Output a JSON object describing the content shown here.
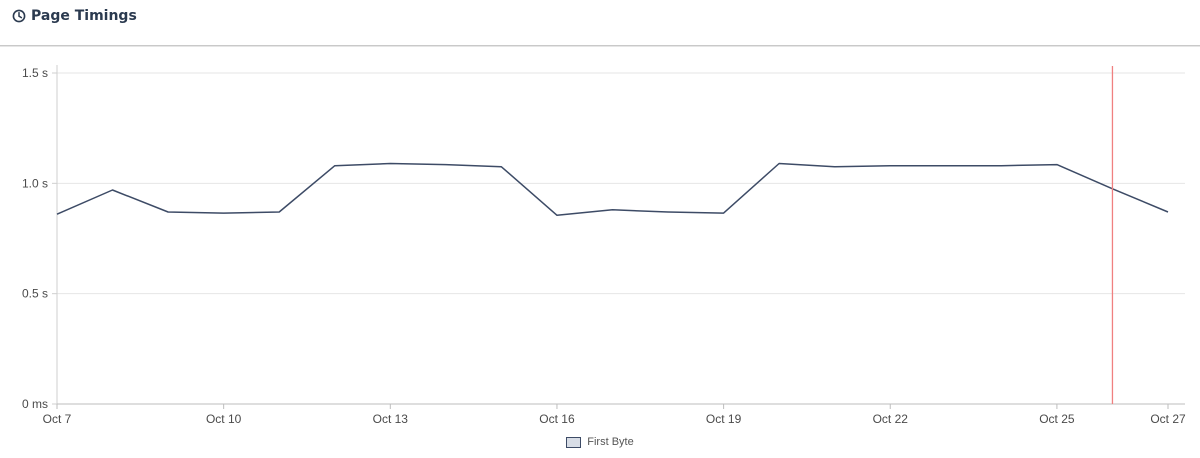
{
  "panel": {
    "title": "Page Timings",
    "icon": "clock-icon"
  },
  "chart_data": {
    "type": "line",
    "title": "",
    "xlabel": "",
    "ylabel": "",
    "x": [
      "Oct 7",
      "Oct 8",
      "Oct 9",
      "Oct 10",
      "Oct 11",
      "Oct 12",
      "Oct 13",
      "Oct 14",
      "Oct 15",
      "Oct 16",
      "Oct 17",
      "Oct 18",
      "Oct 19",
      "Oct 20",
      "Oct 21",
      "Oct 22",
      "Oct 23",
      "Oct 24",
      "Oct 25",
      "Oct 26",
      "Oct 27"
    ],
    "x_ticks": [
      "Oct 7",
      "Oct 10",
      "Oct 13",
      "Oct 16",
      "Oct 19",
      "Oct 22",
      "Oct 25",
      "Oct 27"
    ],
    "y_ticks": [
      {
        "value": 0,
        "label": "0 ms"
      },
      {
        "value": 0.5,
        "label": "0.5 s"
      },
      {
        "value": 1.0,
        "label": "1.0 s"
      },
      {
        "value": 1.5,
        "label": "1.5 s"
      }
    ],
    "ylim": [
      0,
      1.5
    ],
    "y_unit": "s",
    "grid": true,
    "legend": "bottom-center",
    "series": [
      {
        "name": "First Byte",
        "color": "#3d4b66",
        "values": [
          0.86,
          0.97,
          0.87,
          0.865,
          0.87,
          1.08,
          1.09,
          1.085,
          1.075,
          0.855,
          0.88,
          0.87,
          0.865,
          1.09,
          1.075,
          1.08,
          1.08,
          1.08,
          1.085,
          0.975,
          0.87
        ]
      }
    ],
    "marker_line": {
      "x": "Oct 26",
      "color": "#f08080"
    }
  }
}
